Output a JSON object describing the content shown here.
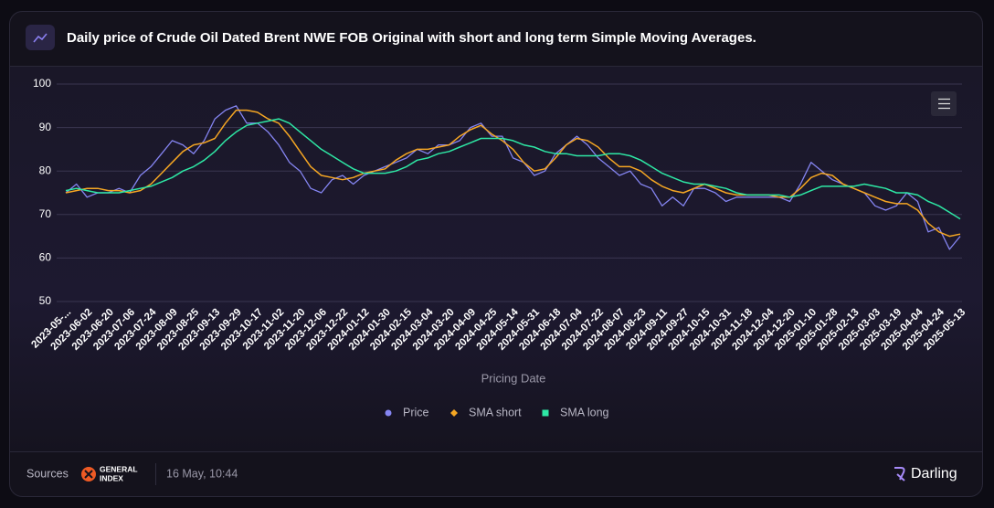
{
  "header": {
    "title": "Daily price of Crude Oil Dated Brent NWE FOB Original with short and long term Simple Moving Averages."
  },
  "chart_data": {
    "type": "line",
    "xlabel": "Pricing Date",
    "categories": [
      "2023-05-...",
      null,
      "2023-06-02",
      null,
      "2023-06-20",
      null,
      "2023-07-06",
      null,
      "2023-07-24",
      null,
      "2023-08-09",
      null,
      "2023-08-25",
      null,
      "2023-09-13",
      null,
      "2023-09-29",
      null,
      "2023-10-17",
      null,
      "2023-11-02",
      null,
      "2023-11-20",
      null,
      "2023-12-06",
      null,
      "2023-12-22",
      null,
      "2024-01-12",
      null,
      "2024-01-30",
      null,
      "2024-02-15",
      null,
      "2024-03-04",
      null,
      "2024-03-20",
      null,
      "2024-04-09",
      null,
      "2024-04-25",
      null,
      "2024-05-14",
      null,
      "2024-05-31",
      null,
      "2024-06-18",
      null,
      "2024-07-04",
      null,
      "2024-07-22",
      null,
      "2024-08-07",
      null,
      "2024-08-23",
      null,
      "2024-09-11",
      null,
      "2024-09-27",
      null,
      "2024-10-15",
      null,
      "2024-10-31",
      null,
      "2024-11-18",
      null,
      "2024-12-04",
      null,
      "2024-12-20",
      null,
      "2025-01-10",
      null,
      "2025-01-28",
      null,
      "2025-02-13",
      null,
      "2025-03-03",
      null,
      "2025-03-19",
      null,
      "2025-04-04",
      null,
      "2025-04-24",
      null,
      "2025-05-13"
    ],
    "series": [
      {
        "name": "Price",
        "color": "#8585f2",
        "marker": "circle",
        "values": [
          75,
          77,
          74,
          75,
          75,
          76,
          75,
          79,
          81,
          84,
          87,
          86,
          84,
          87,
          92,
          94,
          95,
          91,
          91,
          89,
          86,
          82,
          80,
          76,
          75,
          78,
          79,
          77,
          79,
          80,
          81,
          82,
          83,
          85,
          84,
          86,
          86,
          87,
          90,
          91,
          88,
          88,
          83,
          82,
          79,
          80,
          84,
          86,
          88,
          86,
          83,
          81,
          79,
          80,
          77,
          76,
          72,
          74,
          72,
          76,
          76,
          75,
          73,
          74,
          74,
          74,
          74,
          74,
          73,
          77,
          82,
          80,
          78,
          77,
          76,
          75,
          72,
          71,
          72,
          75,
          73,
          66,
          67,
          62,
          65
        ]
      },
      {
        "name": "SMA short",
        "color": "#f5a623",
        "marker": "diamond",
        "values": [
          75,
          75.5,
          76,
          76,
          75.5,
          75.5,
          75,
          75.5,
          77,
          79.5,
          82,
          84.5,
          86,
          86.5,
          87.5,
          91,
          94,
          94,
          93.5,
          92,
          91,
          88,
          84.5,
          81,
          79,
          78.5,
          78,
          78.5,
          79.5,
          80,
          80.5,
          82.5,
          84,
          85,
          85,
          85.5,
          86,
          88,
          89.5,
          90.5,
          88.5,
          87,
          85,
          82,
          80,
          80.5,
          83,
          86,
          87.5,
          87,
          85.5,
          83,
          81,
          81,
          80,
          78,
          76.5,
          75.5,
          75,
          76,
          77,
          76,
          75,
          74.5,
          74.5,
          74.5,
          74.5,
          74,
          74,
          76,
          78.5,
          79.5,
          79,
          77,
          76,
          75,
          74,
          73,
          72.5,
          72.5,
          71,
          68,
          66,
          65,
          65.5
        ]
      },
      {
        "name": "SMA long",
        "color": "#2ee8a5",
        "marker": "square",
        "values": [
          75.5,
          76,
          75.5,
          75,
          75,
          75,
          75.5,
          76,
          76.5,
          77.5,
          78.5,
          80,
          81,
          82.5,
          84.5,
          87,
          89,
          90.5,
          91,
          91.5,
          92,
          91,
          89,
          87,
          85,
          83.5,
          82,
          80.5,
          79.5,
          79.5,
          79.5,
          80,
          81,
          82.5,
          83,
          84,
          84.5,
          85.5,
          86.5,
          87.5,
          87.5,
          87.5,
          87,
          86,
          85.5,
          84.5,
          84,
          84,
          83.5,
          83.5,
          83.5,
          84,
          84,
          83.5,
          82.5,
          81,
          79.5,
          78.5,
          77.5,
          77,
          77,
          76.5,
          76,
          75,
          74.5,
          74.5,
          74.5,
          74.5,
          74,
          74.5,
          75.5,
          76.5,
          76.5,
          76.5,
          76.5,
          77,
          76.5,
          76,
          75,
          75,
          74.5,
          73,
          72,
          70.5,
          69
        ]
      }
    ],
    "ylim": [
      50,
      100
    ],
    "yticks": [
      50,
      60,
      70,
      80,
      90,
      100
    ],
    "grid": true,
    "legend": "bottom"
  },
  "footer": {
    "sources_label": "Sources",
    "logo_text": [
      "GENERAL",
      "INDEX"
    ],
    "timestamp": "16 May, 10:44",
    "brand": "Darling"
  }
}
